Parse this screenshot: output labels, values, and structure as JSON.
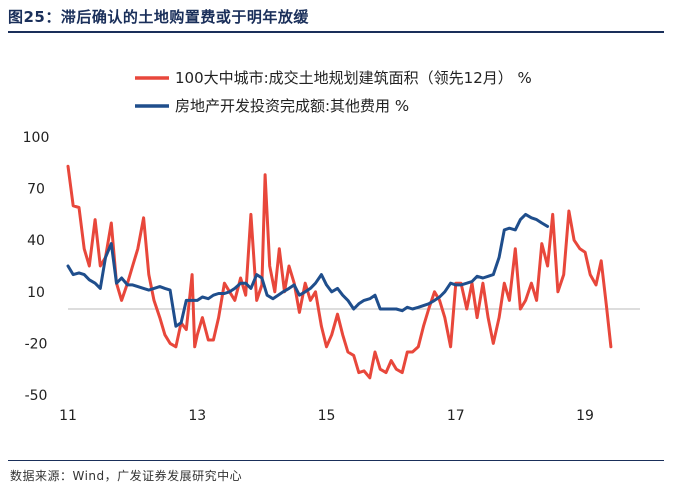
{
  "header": {
    "title": "图25：滞后确认的土地购置费或于明年放缓"
  },
  "footer": {
    "source": "数据来源：Wind，广发证券发展研究中心"
  },
  "colors": {
    "accent": "#1a2f5a",
    "series_red": "#e8473b",
    "series_blue": "#1f4e8c",
    "zero_line": "#bbbbbb"
  },
  "chart_data": {
    "type": "line",
    "title": "",
    "xlabel": "",
    "ylabel": "",
    "xlim": [
      2011,
      2019.85
    ],
    "ylim": [
      -50,
      100
    ],
    "x_ticks": [
      {
        "value": 2011,
        "label": "11"
      },
      {
        "value": 2013,
        "label": "13"
      },
      {
        "value": 2015,
        "label": "15"
      },
      {
        "value": 2017,
        "label": "17"
      },
      {
        "value": 2019,
        "label": "19"
      }
    ],
    "y_ticks": [
      {
        "value": 100,
        "label": "100"
      },
      {
        "value": 70,
        "label": "70"
      },
      {
        "value": 40,
        "label": "40"
      },
      {
        "value": 10,
        "label": "10"
      },
      {
        "value": -20,
        "label": "-20"
      },
      {
        "value": -50,
        "label": "-50"
      }
    ],
    "zero_line": 0,
    "legend": "top-left",
    "series": [
      {
        "name": "100大中城市:成交土地规划建筑面积（领先12月） %",
        "color": "#e8473b",
        "points": [
          [
            2011.0,
            83
          ],
          [
            2011.08,
            60
          ],
          [
            2011.17,
            59
          ],
          [
            2011.25,
            35
          ],
          [
            2011.33,
            25
          ],
          [
            2011.42,
            52
          ],
          [
            2011.5,
            25
          ],
          [
            2011.58,
            30
          ],
          [
            2011.67,
            50
          ],
          [
            2011.75,
            15
          ],
          [
            2011.83,
            5
          ],
          [
            2011.92,
            15
          ],
          [
            2012.0,
            25
          ],
          [
            2012.08,
            35
          ],
          [
            2012.17,
            53
          ],
          [
            2012.25,
            20
          ],
          [
            2012.33,
            5
          ],
          [
            2012.42,
            -5
          ],
          [
            2012.5,
            -15
          ],
          [
            2012.58,
            -20
          ],
          [
            2012.67,
            -22
          ],
          [
            2012.75,
            -8
          ],
          [
            2012.83,
            -12
          ],
          [
            2012.92,
            20
          ],
          [
            2012.96,
            -22
          ],
          [
            2013.0,
            -15
          ],
          [
            2013.08,
            -5
          ],
          [
            2013.17,
            -18
          ],
          [
            2013.25,
            -18
          ],
          [
            2013.33,
            -5
          ],
          [
            2013.42,
            15
          ],
          [
            2013.5,
            10
          ],
          [
            2013.58,
            5
          ],
          [
            2013.67,
            18
          ],
          [
            2013.75,
            8
          ],
          [
            2013.83,
            55
          ],
          [
            2013.92,
            5
          ],
          [
            2014.0,
            14
          ],
          [
            2014.05,
            78
          ],
          [
            2014.12,
            25
          ],
          [
            2014.2,
            10
          ],
          [
            2014.27,
            35
          ],
          [
            2014.35,
            10
          ],
          [
            2014.42,
            25
          ],
          [
            2014.5,
            15
          ],
          [
            2014.58,
            -2
          ],
          [
            2014.67,
            15
          ],
          [
            2014.75,
            5
          ],
          [
            2014.83,
            10
          ],
          [
            2014.92,
            -10
          ],
          [
            2015.0,
            -22
          ],
          [
            2015.08,
            -15
          ],
          [
            2015.17,
            -3
          ],
          [
            2015.25,
            -15
          ],
          [
            2015.33,
            -25
          ],
          [
            2015.42,
            -27
          ],
          [
            2015.5,
            -37
          ],
          [
            2015.58,
            -36
          ],
          [
            2015.67,
            -40
          ],
          [
            2015.75,
            -25
          ],
          [
            2015.83,
            -35
          ],
          [
            2015.92,
            -37
          ],
          [
            2016.0,
            -30
          ],
          [
            2016.08,
            -35
          ],
          [
            2016.17,
            -37
          ],
          [
            2016.25,
            -25
          ],
          [
            2016.33,
            -25
          ],
          [
            2016.42,
            -22
          ],
          [
            2016.5,
            -10
          ],
          [
            2016.58,
            0
          ],
          [
            2016.67,
            10
          ],
          [
            2016.75,
            5
          ],
          [
            2016.83,
            -5
          ],
          [
            2016.92,
            -22
          ],
          [
            2017.0,
            15
          ],
          [
            2017.08,
            15
          ],
          [
            2017.17,
            0
          ],
          [
            2017.25,
            15
          ],
          [
            2017.33,
            -5
          ],
          [
            2017.42,
            15
          ],
          [
            2017.5,
            -5
          ],
          [
            2017.58,
            -20
          ],
          [
            2017.67,
            -5
          ],
          [
            2017.75,
            15
          ],
          [
            2017.83,
            5
          ],
          [
            2017.92,
            35
          ],
          [
            2018.0,
            0
          ],
          [
            2018.08,
            5
          ],
          [
            2018.17,
            15
          ],
          [
            2018.25,
            5
          ],
          [
            2018.33,
            38
          ],
          [
            2018.42,
            25
          ],
          [
            2018.5,
            55
          ],
          [
            2018.58,
            10
          ],
          [
            2018.67,
            20
          ],
          [
            2018.75,
            57
          ],
          [
            2018.83,
            40
          ],
          [
            2018.92,
            35
          ],
          [
            2019.0,
            33
          ],
          [
            2019.08,
            20
          ],
          [
            2019.17,
            14
          ],
          [
            2019.25,
            28
          ],
          [
            2019.33,
            2
          ],
          [
            2019.4,
            -22
          ]
        ]
      },
      {
        "name": "房地产开发投资完成额:其他费用 %",
        "color": "#1f4e8c",
        "points": [
          [
            2011.0,
            25
          ],
          [
            2011.08,
            20
          ],
          [
            2011.17,
            21
          ],
          [
            2011.25,
            20
          ],
          [
            2011.33,
            17
          ],
          [
            2011.42,
            15
          ],
          [
            2011.5,
            12
          ],
          [
            2011.58,
            30
          ],
          [
            2011.67,
            38
          ],
          [
            2011.75,
            15
          ],
          [
            2011.83,
            18
          ],
          [
            2011.92,
            14
          ],
          [
            2012.0,
            14
          ],
          [
            2012.08,
            13
          ],
          [
            2012.17,
            12
          ],
          [
            2012.25,
            11
          ],
          [
            2012.33,
            12
          ],
          [
            2012.42,
            13
          ],
          [
            2012.5,
            12
          ],
          [
            2012.58,
            11
          ],
          [
            2012.67,
            -10
          ],
          [
            2012.75,
            -8
          ],
          [
            2012.83,
            5
          ],
          [
            2012.92,
            5
          ],
          [
            2013.0,
            5
          ],
          [
            2013.08,
            7
          ],
          [
            2013.17,
            6
          ],
          [
            2013.25,
            8
          ],
          [
            2013.33,
            9
          ],
          [
            2013.42,
            9
          ],
          [
            2013.5,
            10
          ],
          [
            2013.58,
            12
          ],
          [
            2013.67,
            15
          ],
          [
            2013.75,
            15
          ],
          [
            2013.83,
            12
          ],
          [
            2013.92,
            20
          ],
          [
            2014.0,
            18
          ],
          [
            2014.08,
            8
          ],
          [
            2014.17,
            6
          ],
          [
            2014.25,
            8
          ],
          [
            2014.33,
            10
          ],
          [
            2014.42,
            12
          ],
          [
            2014.5,
            14
          ],
          [
            2014.58,
            8
          ],
          [
            2014.67,
            10
          ],
          [
            2014.75,
            12
          ],
          [
            2014.83,
            15
          ],
          [
            2014.92,
            20
          ],
          [
            2015.0,
            14
          ],
          [
            2015.08,
            10
          ],
          [
            2015.17,
            12
          ],
          [
            2015.25,
            8
          ],
          [
            2015.33,
            5
          ],
          [
            2015.42,
            0
          ],
          [
            2015.5,
            3
          ],
          [
            2015.58,
            5
          ],
          [
            2015.67,
            6
          ],
          [
            2015.75,
            8
          ],
          [
            2015.83,
            0
          ],
          [
            2015.92,
            0
          ],
          [
            2016.0,
            0
          ],
          [
            2016.08,
            0
          ],
          [
            2016.17,
            -1
          ],
          [
            2016.25,
            1
          ],
          [
            2016.33,
            0
          ],
          [
            2016.42,
            1
          ],
          [
            2016.5,
            2
          ],
          [
            2016.58,
            3
          ],
          [
            2016.67,
            5
          ],
          [
            2016.75,
            7
          ],
          [
            2016.83,
            10
          ],
          [
            2016.92,
            15
          ],
          [
            2017.0,
            14
          ],
          [
            2017.08,
            14
          ],
          [
            2017.17,
            15
          ],
          [
            2017.25,
            16
          ],
          [
            2017.33,
            19
          ],
          [
            2017.42,
            18
          ],
          [
            2017.5,
            19
          ],
          [
            2017.58,
            20
          ],
          [
            2017.67,
            30
          ],
          [
            2017.75,
            46
          ],
          [
            2017.83,
            47
          ],
          [
            2017.92,
            46
          ],
          [
            2018.0,
            52
          ],
          [
            2018.08,
            55
          ],
          [
            2018.17,
            53
          ],
          [
            2018.25,
            52
          ],
          [
            2018.33,
            50
          ],
          [
            2018.42,
            48
          ]
        ]
      }
    ]
  }
}
